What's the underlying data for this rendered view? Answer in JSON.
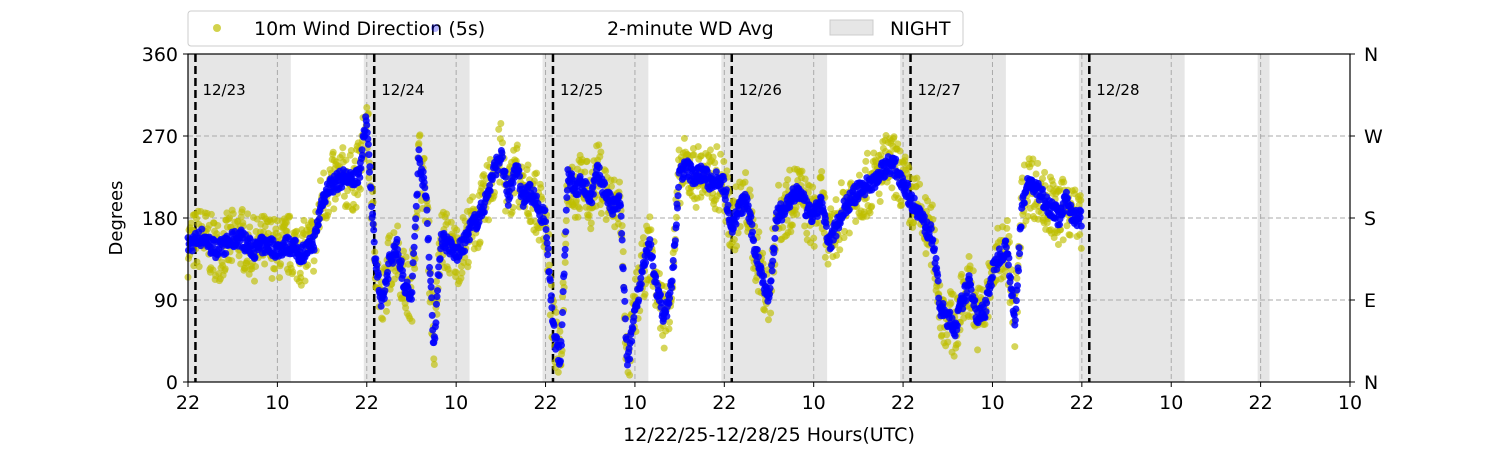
{
  "chart_data": {
    "type": "scatter",
    "xlabel": "12/22/25-12/28/25  Hours(UTC)",
    "ylabel": "Degrees",
    "ylim": [
      0,
      360
    ],
    "xlim_hours_from_start": [
      0,
      156
    ],
    "x_tick_labels": [
      "22",
      "10",
      "22",
      "10",
      "22",
      "10",
      "22",
      "10",
      "22",
      "10",
      "22",
      "10",
      "22",
      "10"
    ],
    "y_ticks": [
      0,
      90,
      180,
      270,
      360
    ],
    "y_tick_labels": [
      "0",
      "90",
      "180",
      "270",
      "360"
    ],
    "right_tick_labels": [
      "N",
      "E",
      "S",
      "W",
      "N"
    ],
    "grid": true,
    "legend": {
      "placement": "top",
      "entries": [
        "10m Wind Direction (5s)",
        "2-minute WD Avg",
        "NIGHT"
      ]
    },
    "day_markers": [
      {
        "hour": 1,
        "label": "12/23"
      },
      {
        "hour": 25,
        "label": "12/24"
      },
      {
        "hour": 49,
        "label": "12/25"
      },
      {
        "hour": 73,
        "label": "12/26"
      },
      {
        "hour": 97,
        "label": "12/27"
      },
      {
        "hour": 121,
        "label": "12/28"
      }
    ],
    "night_periods_hours": [
      [
        0,
        13.8
      ],
      [
        23.6,
        37.8
      ],
      [
        47.6,
        61.8
      ],
      [
        71.6,
        85.8
      ],
      [
        95.6,
        109.8
      ],
      [
        119.6,
        133.8
      ],
      [
        143.6,
        145.2
      ]
    ],
    "series": [
      {
        "name": "10m Wind Direction (5s)",
        "color": "#bfbf00",
        "spread_deg": 35
      },
      {
        "name": "2-minute WD Avg",
        "color": "#0000ff",
        "spread_deg": 10,
        "hourly_avg_deg": [
          150,
          155,
          160,
          150,
          145,
          150,
          155,
          160,
          150,
          145,
          150,
          150,
          145,
          150,
          150,
          140,
          145,
          155,
          200,
          215,
          220,
          225,
          220,
          230,
          290,
          150,
          80,
          130,
          150,
          110,
          90,
          250,
          200,
          40,
          160,
          150,
          140,
          150,
          170,
          180,
          200,
          230,
          250,
          200,
          240,
          200,
          210,
          190,
          180,
          60,
          20,
          230,
          210,
          220,
          200,
          230,
          210,
          190,
          200,
          15,
          80,
          120,
          150,
          100,
          70,
          110,
          230,
          235,
          225,
          230,
          220,
          225,
          215,
          170,
          190,
          200,
          150,
          120,
          90,
          180,
          190,
          200,
          210,
          190,
          180,
          200,
          150,
          170,
          190,
          200,
          210,
          215,
          220,
          230,
          240,
          235,
          220,
          200,
          190,
          170,
          160,
          80,
          70,
          60,
          90,
          110,
          70,
          80,
          120,
          140,
          150,
          60,
          200,
          220,
          210,
          200,
          190,
          180,
          200,
          180
        ]
      }
    ]
  }
}
